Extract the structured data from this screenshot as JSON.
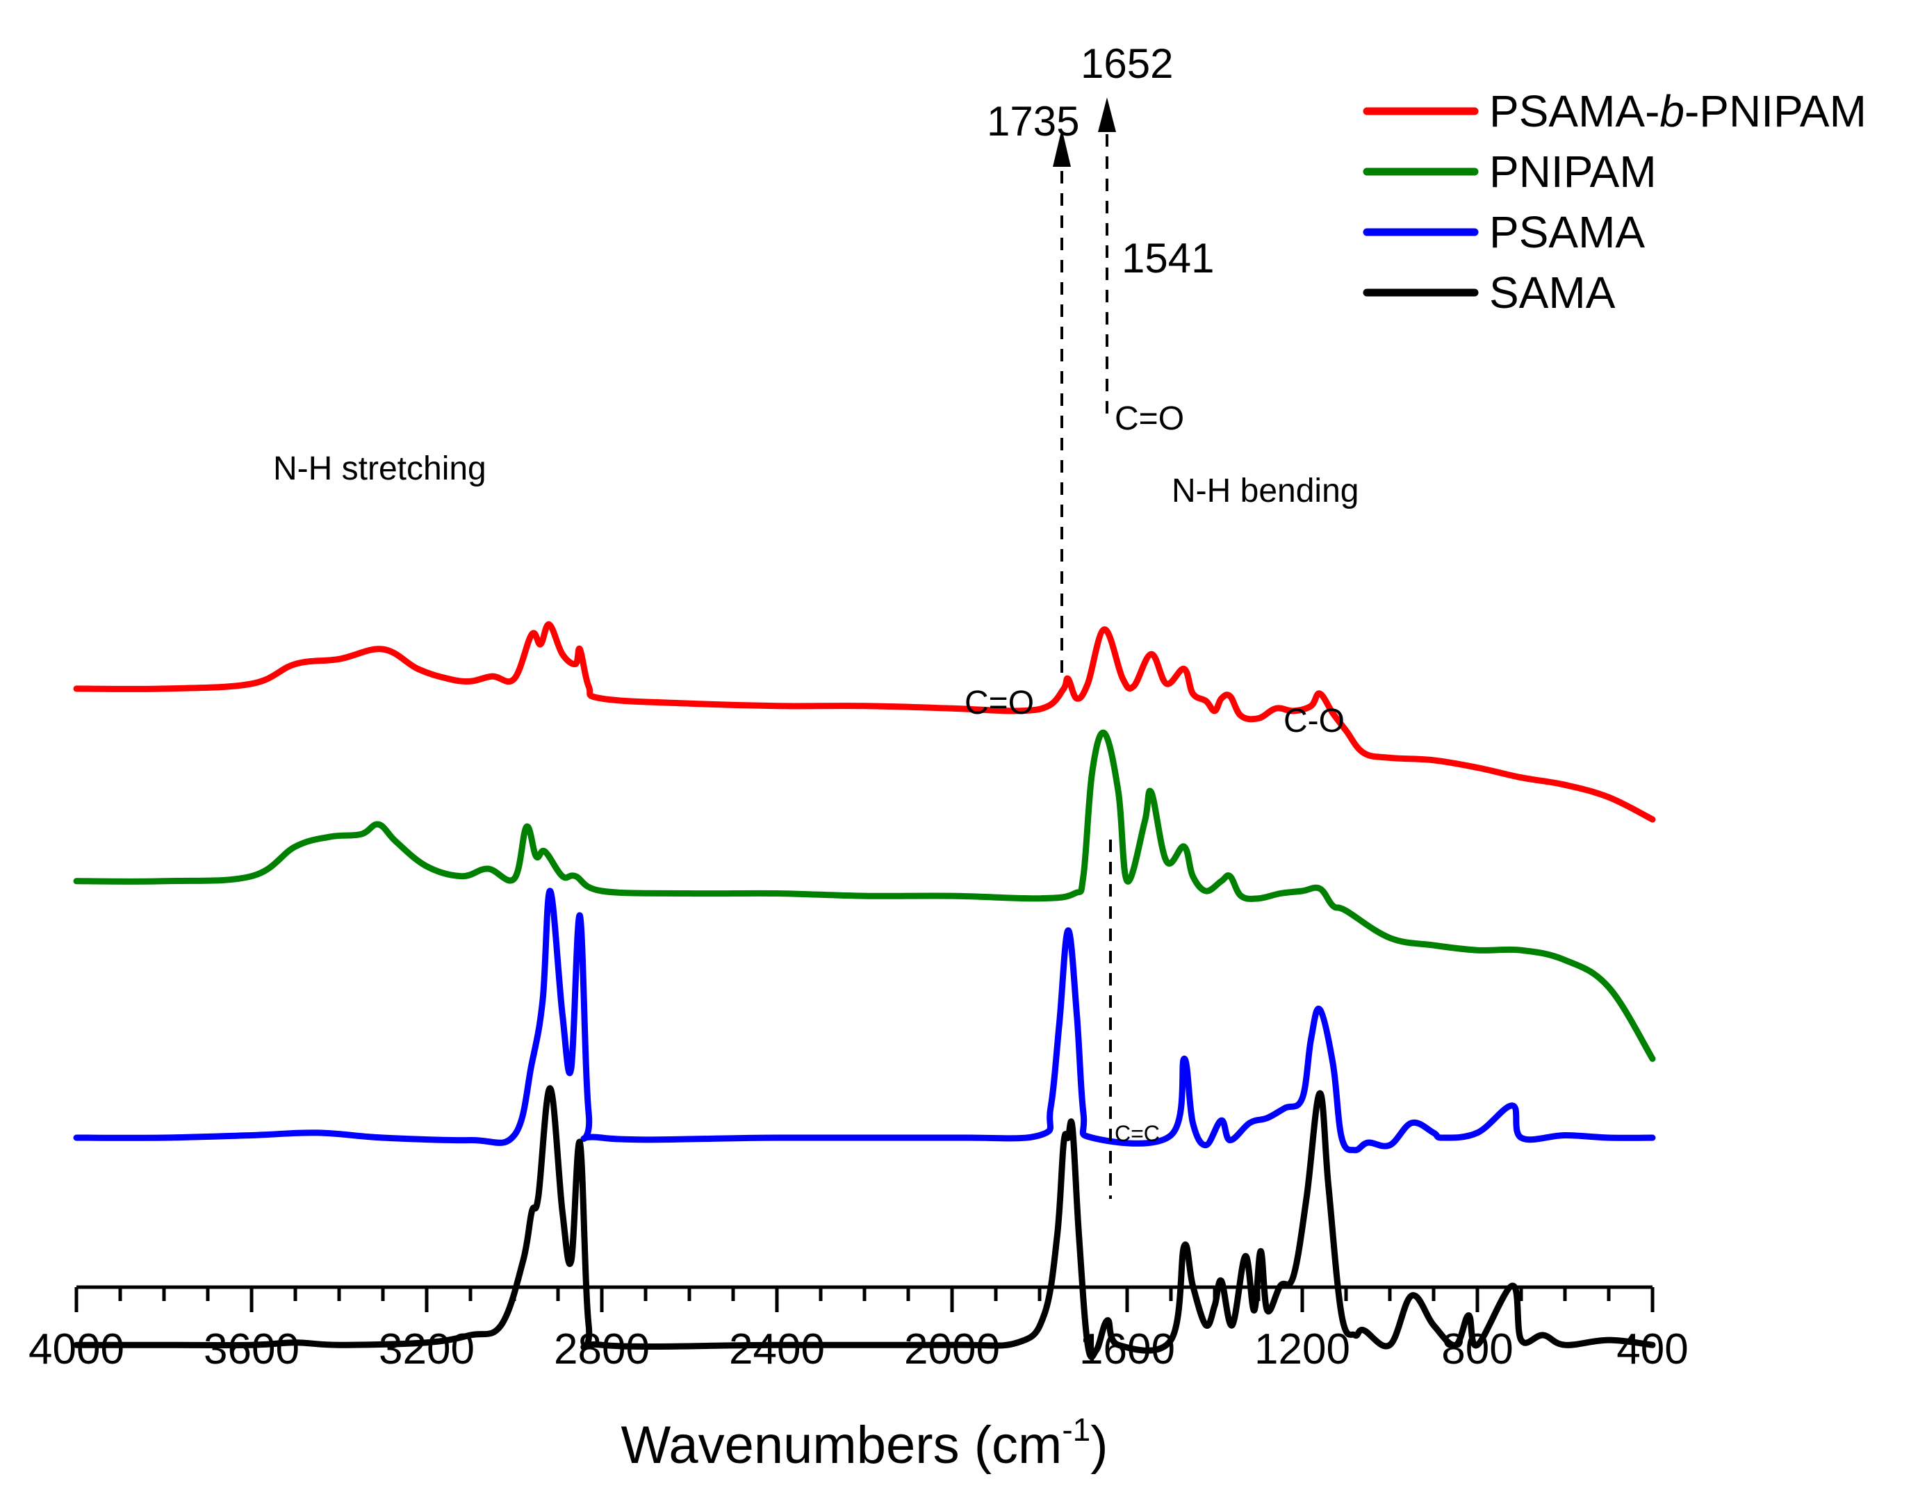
{
  "chart_data": {
    "type": "line",
    "title": "",
    "xlabel_base": "Wavenumbers (cm",
    "xlabel_sup": "-1",
    "xlabel_close": ")",
    "ylabel": "",
    "xlim": [
      4000,
      400
    ],
    "x_ticks": [
      4000,
      3600,
      3200,
      2800,
      2400,
      2000,
      1600,
      1200,
      800,
      400
    ],
    "x_tick_labels": [
      "4000",
      "3600",
      "3200",
      "2800",
      "2400",
      "2000",
      "1600",
      "1200",
      "800",
      "400"
    ],
    "y_axis_visible": false,
    "y_units": "arbitrary (stacked, offset transmittance/absorbance)",
    "series": [
      {
        "name": "PSAMA-b-PNIPAM",
        "legend_prefix": "PSAMA-",
        "legend_italic": "b",
        "legend_suffix": "-PNIPAM",
        "color": "#ff0000",
        "points": [
          [
            4000,
            10.1
          ],
          [
            3800,
            10.1
          ],
          [
            3600,
            10.2
          ],
          [
            3500,
            10.6
          ],
          [
            3400,
            10.7
          ],
          [
            3300,
            10.9
          ],
          [
            3220,
            10.5
          ],
          [
            3150,
            10.3
          ],
          [
            3100,
            10.25
          ],
          [
            3050,
            10.35
          ],
          [
            3000,
            10.3
          ],
          [
            2960,
            11.2
          ],
          [
            2940,
            11.0
          ],
          [
            2920,
            11.4
          ],
          [
            2890,
            10.8
          ],
          [
            2860,
            10.6
          ],
          [
            2850,
            10.9
          ],
          [
            2830,
            10.15
          ],
          [
            2800,
            9.9
          ],
          [
            2600,
            9.8
          ],
          [
            2400,
            9.75
          ],
          [
            2200,
            9.75
          ],
          [
            2000,
            9.7
          ],
          [
            1850,
            9.65
          ],
          [
            1780,
            9.75
          ],
          [
            1745,
            10.1
          ],
          [
            1735,
            10.3
          ],
          [
            1715,
            9.9
          ],
          [
            1690,
            10.2
          ],
          [
            1652,
            11.3
          ],
          [
            1610,
            10.3
          ],
          [
            1585,
            10.15
          ],
          [
            1545,
            10.8
          ],
          [
            1510,
            10.2
          ],
          [
            1470,
            10.5
          ],
          [
            1450,
            10.0
          ],
          [
            1420,
            9.85
          ],
          [
            1400,
            9.65
          ],
          [
            1385,
            9.9
          ],
          [
            1365,
            9.95
          ],
          [
            1340,
            9.55
          ],
          [
            1300,
            9.5
          ],
          [
            1260,
            9.7
          ],
          [
            1220,
            9.65
          ],
          [
            1180,
            9.75
          ],
          [
            1160,
            10.0
          ],
          [
            1130,
            9.6
          ],
          [
            1100,
            9.25
          ],
          [
            1060,
            8.8
          ],
          [
            1000,
            8.7
          ],
          [
            900,
            8.65
          ],
          [
            800,
            8.5
          ],
          [
            700,
            8.3
          ],
          [
            600,
            8.15
          ],
          [
            500,
            7.9
          ],
          [
            400,
            7.45
          ]
        ]
      },
      {
        "name": "PNIPAM",
        "color": "#008000",
        "points": [
          [
            4000,
            6.2
          ],
          [
            3800,
            6.2
          ],
          [
            3600,
            6.3
          ],
          [
            3500,
            6.9
          ],
          [
            3420,
            7.1
          ],
          [
            3350,
            7.15
          ],
          [
            3310,
            7.35
          ],
          [
            3270,
            7.0
          ],
          [
            3200,
            6.5
          ],
          [
            3120,
            6.3
          ],
          [
            3060,
            6.45
          ],
          [
            3000,
            6.25
          ],
          [
            2972,
            7.3
          ],
          [
            2950,
            6.7
          ],
          [
            2930,
            6.8
          ],
          [
            2890,
            6.3
          ],
          [
            2860,
            6.3
          ],
          [
            2800,
            6.0
          ],
          [
            2600,
            5.95
          ],
          [
            2400,
            5.95
          ],
          [
            2200,
            5.9
          ],
          [
            2000,
            5.9
          ],
          [
            1800,
            5.85
          ],
          [
            1720,
            5.95
          ],
          [
            1700,
            6.3
          ],
          [
            1680,
            8.4
          ],
          [
            1652,
            9.2
          ],
          [
            1620,
            8.0
          ],
          [
            1600,
            6.2
          ],
          [
            1560,
            7.4
          ],
          [
            1545,
            8.0
          ],
          [
            1510,
            6.6
          ],
          [
            1470,
            6.9
          ],
          [
            1450,
            6.3
          ],
          [
            1420,
            6.0
          ],
          [
            1385,
            6.2
          ],
          [
            1365,
            6.3
          ],
          [
            1340,
            5.9
          ],
          [
            1300,
            5.85
          ],
          [
            1250,
            5.95
          ],
          [
            1200,
            6.0
          ],
          [
            1160,
            6.05
          ],
          [
            1130,
            5.7
          ],
          [
            1100,
            5.6
          ],
          [
            1000,
            5.05
          ],
          [
            900,
            4.9
          ],
          [
            800,
            4.8
          ],
          [
            700,
            4.8
          ],
          [
            600,
            4.6
          ],
          [
            500,
            4.05
          ],
          [
            400,
            2.6
          ]
        ]
      },
      {
        "name": "PSAMA",
        "color": "#0000ff",
        "points": [
          [
            4000,
            1.0
          ],
          [
            3800,
            1.0
          ],
          [
            3600,
            1.05
          ],
          [
            3450,
            1.1
          ],
          [
            3300,
            1.0
          ],
          [
            3100,
            0.95
          ],
          [
            3000,
            1.05
          ],
          [
            2960,
            2.5
          ],
          [
            2935,
            3.8
          ],
          [
            2918,
            6.0
          ],
          [
            2890,
            3.5
          ],
          [
            2870,
            2.4
          ],
          [
            2850,
            5.5
          ],
          [
            2830,
            1.5
          ],
          [
            2800,
            1.0
          ],
          [
            2400,
            1.0
          ],
          [
            2000,
            1.0
          ],
          [
            1800,
            1.05
          ],
          [
            1775,
            1.6
          ],
          [
            1755,
            3.3
          ],
          [
            1735,
            5.2
          ],
          [
            1715,
            3.5
          ],
          [
            1700,
            1.5
          ],
          [
            1680,
            1.0
          ],
          [
            1500,
            1.05
          ],
          [
            1470,
            2.6
          ],
          [
            1450,
            1.3
          ],
          [
            1420,
            0.85
          ],
          [
            1385,
            1.35
          ],
          [
            1365,
            0.95
          ],
          [
            1320,
            1.3
          ],
          [
            1280,
            1.4
          ],
          [
            1240,
            1.6
          ],
          [
            1200,
            1.8
          ],
          [
            1180,
            3.0
          ],
          [
            1160,
            3.6
          ],
          [
            1130,
            2.5
          ],
          [
            1110,
            1.0
          ],
          [
            1080,
            0.75
          ],
          [
            1050,
            0.9
          ],
          [
            1000,
            0.85
          ],
          [
            950,
            1.3
          ],
          [
            900,
            1.1
          ],
          [
            880,
            1.0
          ],
          [
            800,
            1.1
          ],
          [
            720,
            1.65
          ],
          [
            700,
            1.0
          ],
          [
            600,
            1.05
          ],
          [
            500,
            1.0
          ],
          [
            400,
            1.0
          ]
        ]
      },
      {
        "name": "SAMA",
        "color": "#000000",
        "points": [
          [
            4000,
            -3.2
          ],
          [
            3800,
            -3.2
          ],
          [
            3600,
            -3.2
          ],
          [
            3500,
            -3.15
          ],
          [
            3400,
            -3.2
          ],
          [
            3200,
            -3.15
          ],
          [
            3100,
            -3.0
          ],
          [
            3030,
            -2.8
          ],
          [
            2980,
            -1.5
          ],
          [
            2960,
            -0.5
          ],
          [
            2945,
            -0.2
          ],
          [
            2918,
            2.0
          ],
          [
            2890,
            -0.5
          ],
          [
            2870,
            -1.5
          ],
          [
            2850,
            0.9
          ],
          [
            2830,
            -2.8
          ],
          [
            2800,
            -3.2
          ],
          [
            2400,
            -3.2
          ],
          [
            2000,
            -3.2
          ],
          [
            1850,
            -3.15
          ],
          [
            1790,
            -2.6
          ],
          [
            1760,
            -1.0
          ],
          [
            1745,
            0.9
          ],
          [
            1735,
            1.0
          ],
          [
            1725,
            1.2
          ],
          [
            1710,
            -1.0
          ],
          [
            1690,
            -3.2
          ],
          [
            1670,
            -3.3
          ],
          [
            1645,
            -2.7
          ],
          [
            1620,
            -3.2
          ],
          [
            1500,
            -3.1
          ],
          [
            1470,
            -1.2
          ],
          [
            1450,
            -2.0
          ],
          [
            1420,
            -2.8
          ],
          [
            1400,
            -2.4
          ],
          [
            1385,
            -1.9
          ],
          [
            1360,
            -2.8
          ],
          [
            1330,
            -1.4
          ],
          [
            1310,
            -2.5
          ],
          [
            1295,
            -1.3
          ],
          [
            1280,
            -2.5
          ],
          [
            1250,
            -2.0
          ],
          [
            1220,
            -1.8
          ],
          [
            1190,
            -0.2
          ],
          [
            1160,
            1.9
          ],
          [
            1140,
            0.0
          ],
          [
            1110,
            -2.6
          ],
          [
            1080,
            -3.0
          ],
          [
            1060,
            -2.9
          ],
          [
            1000,
            -3.2
          ],
          [
            950,
            -2.2
          ],
          [
            900,
            -2.8
          ],
          [
            850,
            -3.2
          ],
          [
            820,
            -2.6
          ],
          [
            800,
            -3.2
          ],
          [
            720,
            -2.0
          ],
          [
            700,
            -3.1
          ],
          [
            650,
            -3.0
          ],
          [
            600,
            -3.2
          ],
          [
            500,
            -3.1
          ],
          [
            400,
            -3.2
          ]
        ]
      }
    ],
    "annotations": {
      "peak_1652": "1652",
      "peak_1735": "1735",
      "peak_1541": "1541",
      "co_pnipam": "C=O",
      "nh_stretching": "N-H stretching",
      "nh_bending": "N-H bending",
      "co_psama": "C=O",
      "c_o_psama": "C-O",
      "cc_sama": "C=C"
    }
  }
}
